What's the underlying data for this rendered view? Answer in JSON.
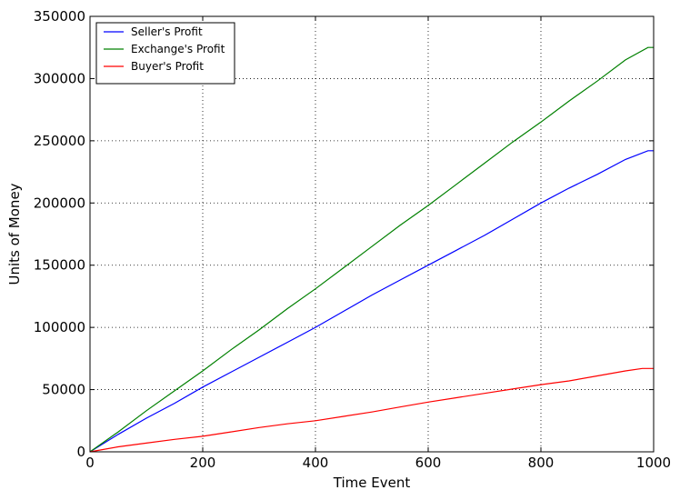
{
  "chart_data": {
    "type": "line",
    "xlabel": "Time Event",
    "ylabel": "Units of Money",
    "xlim": [
      0,
      1000
    ],
    "ylim": [
      0,
      350000
    ],
    "xticks": [
      0,
      200,
      400,
      600,
      800,
      1000
    ],
    "yticks": [
      0,
      50000,
      100000,
      150000,
      200000,
      250000,
      300000,
      350000
    ],
    "xtick_labels": [
      "0",
      "200",
      "400",
      "600",
      "800",
      "1000"
    ],
    "ytick_labels": [
      "0",
      "50000",
      "100000",
      "150000",
      "200000",
      "250000",
      "300000",
      "350000"
    ],
    "grid": true,
    "legend_position": "top-left",
    "series": [
      {
        "name": "Seller's Profit",
        "color": "#0000ff",
        "x": [
          0,
          50,
          100,
          150,
          200,
          250,
          300,
          350,
          400,
          450,
          500,
          550,
          600,
          650,
          700,
          750,
          800,
          850,
          900,
          950,
          990,
          1000
        ],
        "values": [
          0,
          14000,
          27000,
          39000,
          52000,
          64000,
          76000,
          88000,
          100000,
          113000,
          126000,
          138000,
          150000,
          162000,
          174000,
          187000,
          200000,
          212000,
          223000,
          235000,
          242000,
          242000
        ]
      },
      {
        "name": "Exchange's Profit",
        "color": "#008000",
        "x": [
          0,
          50,
          100,
          150,
          200,
          250,
          300,
          350,
          400,
          450,
          500,
          550,
          600,
          650,
          700,
          750,
          800,
          850,
          900,
          950,
          990,
          1000
        ],
        "values": [
          0,
          16000,
          33000,
          49000,
          65000,
          82000,
          98000,
          115000,
          131000,
          148000,
          165000,
          182000,
          198000,
          215000,
          232000,
          249000,
          265000,
          282000,
          298000,
          315000,
          325000,
          325000
        ]
      },
      {
        "name": "Buyer's Profit",
        "color": "#ff0000",
        "x": [
          0,
          50,
          100,
          150,
          200,
          250,
          300,
          350,
          400,
          450,
          500,
          550,
          600,
          650,
          700,
          750,
          800,
          850,
          900,
          950,
          980,
          1000
        ],
        "values": [
          0,
          4000,
          7000,
          10000,
          12500,
          16000,
          19500,
          22500,
          25000,
          28500,
          32000,
          36000,
          40000,
          43500,
          47000,
          50500,
          54000,
          57000,
          61000,
          65000,
          67000,
          67000
        ]
      }
    ]
  }
}
